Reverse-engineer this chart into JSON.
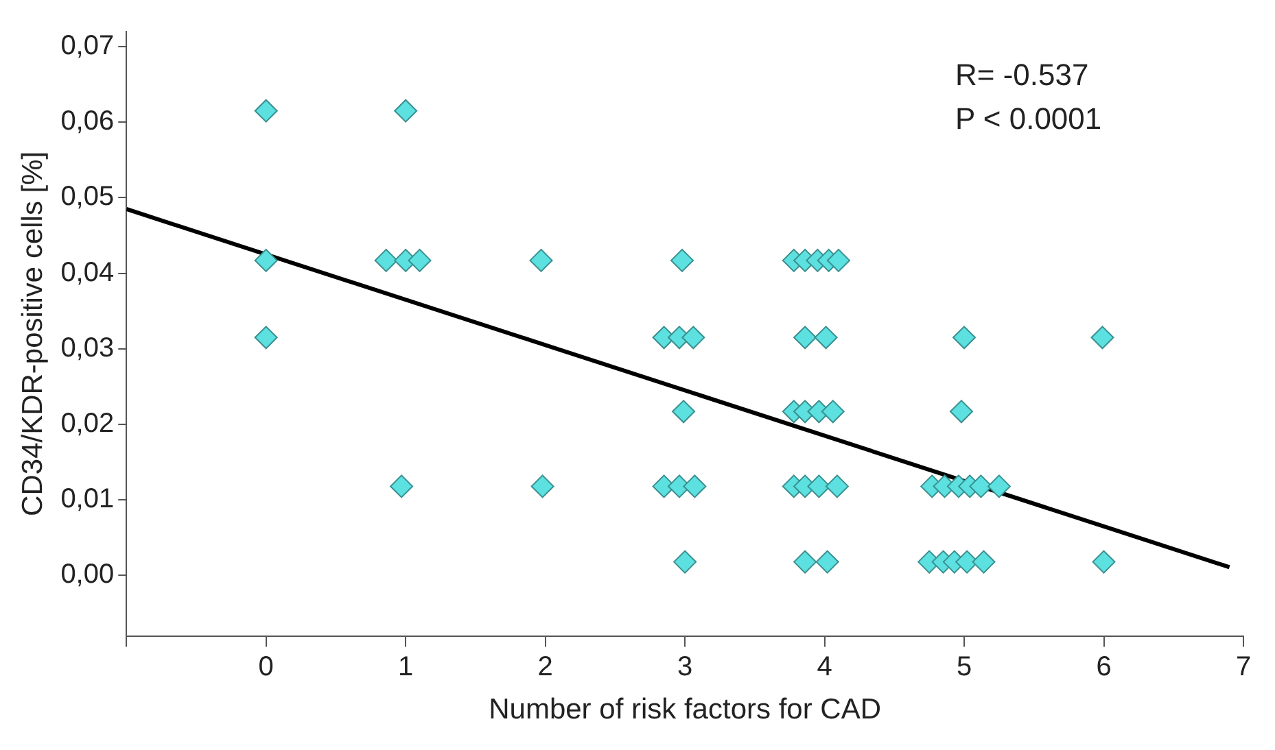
{
  "chart_data": {
    "type": "scatter",
    "xlabel": "Number of risk factors for CAD",
    "ylabel": "CD34/KDR-positive cells [%]",
    "annotations": [
      "R= -0.537",
      "P < 0.0001"
    ],
    "xlim": [
      -1,
      7
    ],
    "xticks": [
      {
        "value": -1,
        "label": null
      },
      0,
      1,
      2,
      3,
      4,
      5,
      6,
      7
    ],
    "ylim": [
      -0.008,
      0.072
    ],
    "yticks": [
      {
        "value": 0,
        "label": "0,00"
      },
      {
        "value": 0.01,
        "label": "0,01"
      },
      {
        "value": 0.02,
        "label": "0,02"
      },
      {
        "value": 0.03,
        "label": "0,03"
      },
      {
        "value": 0.04,
        "label": "0,04"
      },
      {
        "value": 0.05,
        "label": "0,05"
      },
      {
        "value": 0.06,
        "label": "0,06"
      },
      {
        "value": 0.07,
        "label": "0,07"
      }
    ],
    "grid": false,
    "legend": false,
    "series": [
      {
        "type": "scatter",
        "marker": "diamond",
        "color": "#5ce0e0",
        "x": [
          0,
          1,
          0,
          0.86,
          1.0,
          1.1,
          1.97,
          2.98,
          3.78,
          3.86,
          3.95,
          4.03,
          4.1,
          0,
          2.85,
          2.96,
          3.06,
          3.86,
          4.01,
          5,
          5.99,
          2.99,
          3.78,
          3.86,
          3.96,
          4.06,
          4.98,
          0.97,
          1.98,
          2.85,
          2.96,
          3.07,
          3.78,
          3.86,
          3.96,
          4.09,
          4.77,
          4.86,
          4.96,
          5.04,
          5.12,
          5.25,
          3,
          3.86,
          4.02,
          4.75,
          4.85,
          4.93,
          5.02,
          5.14,
          6
        ],
        "values": [
          0.0615,
          0.0615,
          0.0417,
          0.0417,
          0.0417,
          0.0417,
          0.0417,
          0.0417,
          0.0417,
          0.0417,
          0.0417,
          0.0417,
          0.0417,
          0.0315,
          0.0315,
          0.0315,
          0.0315,
          0.0315,
          0.0315,
          0.0315,
          0.0315,
          0.0217,
          0.0217,
          0.0217,
          0.0217,
          0.0217,
          0.0217,
          0.0118,
          0.0118,
          0.0118,
          0.0118,
          0.0118,
          0.0118,
          0.0118,
          0.0118,
          0.0118,
          0.0118,
          0.0118,
          0.0118,
          0.0118,
          0.0118,
          0.0118,
          0.0018,
          0.0018,
          0.0018,
          0.0018,
          0.0018,
          0.0018,
          0.0018,
          0.0018,
          0.0018
        ]
      },
      {
        "type": "line",
        "marker": "none",
        "color": "#000000",
        "x": [
          -1,
          6.9
        ],
        "values": [
          0.0485,
          0.0011
        ]
      }
    ]
  }
}
